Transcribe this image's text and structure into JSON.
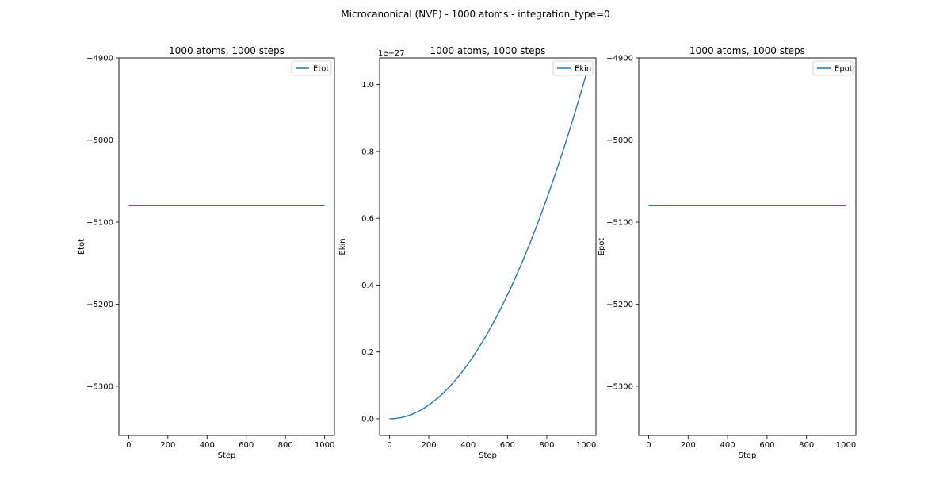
{
  "figure": {
    "suptitle": "Microcanonical (NVE) - 1000 atoms - integration_type=0"
  },
  "chart_data": [
    {
      "type": "line",
      "title": "1000 atoms, 1000 steps",
      "xlabel": "Step",
      "ylabel": "Etot",
      "xlim": [
        -50,
        1050
      ],
      "ylim": [
        -5360,
        -4900
      ],
      "x_ticks": [
        0,
        200,
        400,
        600,
        800,
        1000
      ],
      "y_ticks": [
        -5300,
        -5200,
        -5100,
        -5000,
        -4900
      ],
      "y_tick_labels": [
        "−5300",
        "−5200",
        "−5100",
        "−5000",
        "−4900"
      ],
      "offset_text": "",
      "legend_position": "upper right",
      "grid": false,
      "color": "#1f77b4",
      "series": [
        {
          "name": "Etot",
          "function": "constant",
          "x": [
            0,
            1000
          ],
          "y": [
            -5080,
            -5080
          ]
        }
      ]
    },
    {
      "type": "line",
      "title": "1000 atoms, 1000 steps",
      "xlabel": "Step",
      "ylabel": "Ekin",
      "xlim": [
        -50,
        1050
      ],
      "ylim": [
        -0.05,
        1.08
      ],
      "x_ticks": [
        0,
        200,
        400,
        600,
        800,
        1000
      ],
      "y_ticks": [
        0.0,
        0.2,
        0.4,
        0.6,
        0.8,
        1.0
      ],
      "y_tick_labels": [
        "0.0",
        "0.2",
        "0.4",
        "0.6",
        "0.8",
        "1.0"
      ],
      "offset_text": "1e−27",
      "legend_position": "upper right",
      "grid": false,
      "color": "#1f77b4",
      "series": [
        {
          "name": "Ekin",
          "function": "quadratic",
          "x": [
            0,
            1000
          ],
          "y": [
            0.0,
            1.03
          ]
        }
      ]
    },
    {
      "type": "line",
      "title": "1000 atoms, 1000 steps",
      "xlabel": "Step",
      "ylabel": "Epot",
      "xlim": [
        -50,
        1050
      ],
      "ylim": [
        -5360,
        -4900
      ],
      "x_ticks": [
        0,
        200,
        400,
        600,
        800,
        1000
      ],
      "y_ticks": [
        -5300,
        -5200,
        -5100,
        -5000,
        -4900
      ],
      "y_tick_labels": [
        "−5300",
        "−5200",
        "−5100",
        "−5000",
        "−4900"
      ],
      "offset_text": "",
      "legend_position": "upper right",
      "grid": false,
      "color": "#1f77b4",
      "series": [
        {
          "name": "Epot",
          "function": "constant",
          "x": [
            0,
            1000
          ],
          "y": [
            -5080,
            -5080
          ]
        }
      ]
    }
  ]
}
